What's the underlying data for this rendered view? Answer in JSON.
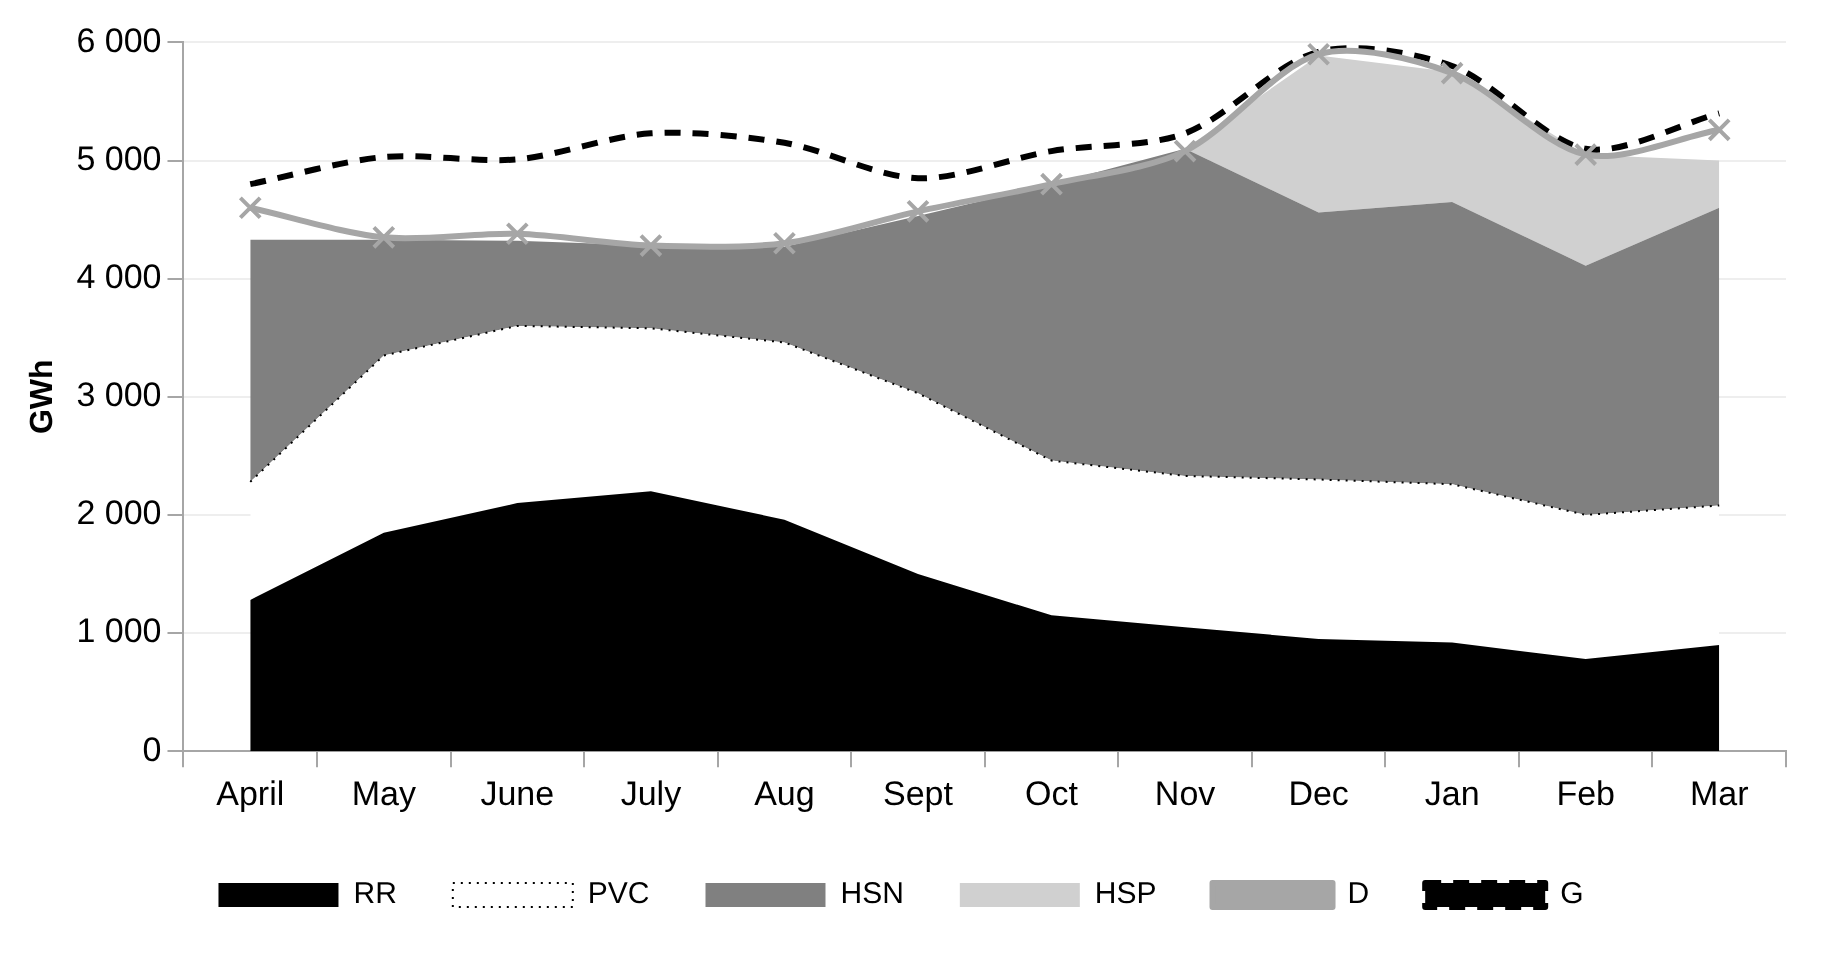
{
  "chart_data": {
    "type": "area",
    "ylabel": "GWh",
    "stacked": true,
    "categories": [
      "April",
      "May",
      "June",
      "July",
      "Aug",
      "Sept",
      "Oct",
      "Nov",
      "Dec",
      "Jan",
      "Feb",
      "Mar"
    ],
    "series": [
      {
        "name": "RR",
        "color": "#000000",
        "values": [
          1280,
          1850,
          2100,
          2200,
          1960,
          1500,
          1150,
          1050,
          950,
          920,
          780,
          900
        ]
      },
      {
        "name": "PVC",
        "color": "#ffffff",
        "values": [
          1000,
          1500,
          1500,
          1380,
          1500,
          1530,
          1310,
          1280,
          1350,
          1340,
          1220,
          1180
        ]
      },
      {
        "name": "HSN",
        "color": "#808080",
        "values": [
          2050,
          980,
          720,
          700,
          810,
          1500,
          2340,
          2770,
          2260,
          2390,
          2110,
          2520
        ]
      },
      {
        "name": "HSP",
        "color": "#d0d0d0",
        "values": [
          null,
          null,
          null,
          null,
          null,
          null,
          null,
          0,
          1330,
          1100,
          940,
          400
        ]
      },
      {
        "name": "D",
        "type": "line",
        "color": "#a6a6a6",
        "marker": "cross",
        "line_style": "solid",
        "values": [
          4600,
          4350,
          4380,
          4280,
          4300,
          4570,
          4800,
          5080,
          5900,
          5740,
          5050,
          5260
        ]
      },
      {
        "name": "G",
        "type": "line",
        "color": "#000000",
        "marker": "none",
        "line_style": "dashed",
        "values": [
          4800,
          5030,
          5010,
          5230,
          5150,
          4850,
          5080,
          5230,
          5920,
          5800,
          5100,
          5400
        ]
      }
    ],
    "ylim": [
      0,
      6000
    ],
    "yticks": [
      0,
      {
        "value": 1000,
        "label": "1 000"
      },
      {
        "value": 2000,
        "label": "2 000"
      },
      {
        "value": 3000,
        "label": "3 000"
      },
      {
        "value": 4000,
        "label": "4 000"
      },
      {
        "value": 5000,
        "label": "5 000"
      },
      {
        "value": 6000,
        "label": "6 000"
      }
    ],
    "grid": "y",
    "legend": "bottom"
  }
}
